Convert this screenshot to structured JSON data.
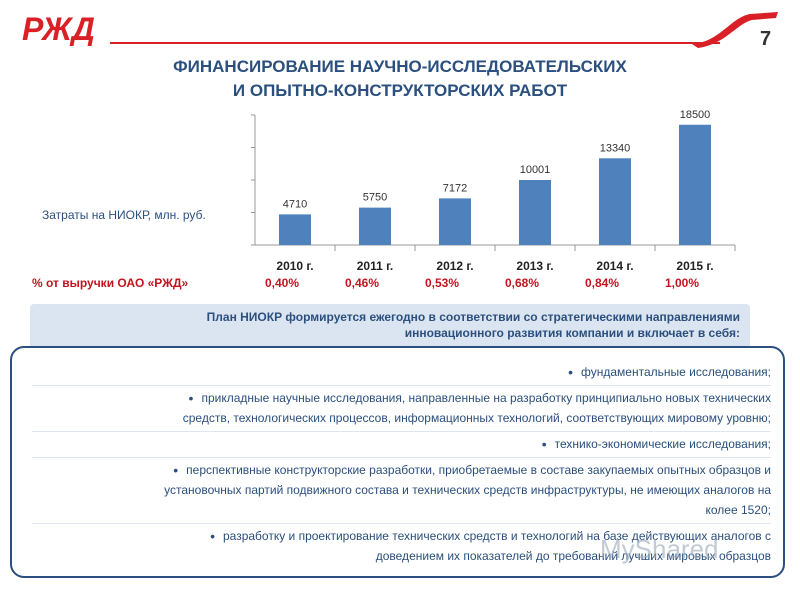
{
  "header": {
    "page_number": "7",
    "title_line1": "ФИНАНСИРОВАНИЕ НАУЧНО-ИССЛЕДОВАТЕЛЬСКИХ",
    "title_line2": "И ОПЫТНО-КОНСТРУКТОРСКИХ РАБОТ",
    "brand_color": "#d92027",
    "title_color": "#2b4f7e"
  },
  "chart_data": {
    "type": "bar",
    "categories": [
      "2010 г.",
      "2011 г.",
      "2012 г.",
      "2013 г.",
      "2014 г.",
      "2015 г."
    ],
    "values": [
      4710,
      5750,
      7172,
      10001,
      13340,
      18500
    ],
    "data_labels": [
      "4710",
      "5750",
      "7172",
      "10001",
      "13340",
      "18500"
    ],
    "ylabel": "Затраты на НИОКР, млн. руб.",
    "ylim": [
      0,
      20000
    ],
    "grid": false,
    "bar_color": "#4f81bd"
  },
  "revenue_share": {
    "label": "% от выручки ОАО «РЖД»",
    "values": [
      "0,40%",
      "0,46%",
      "0,53%",
      "0,68%",
      "0,84%",
      "1,00%"
    ]
  },
  "banner": {
    "line1": "План НИОКР формируется ежегодно в соответствии со стратегическими направлениями",
    "line2": "инновационного развития компании и включает в себя:"
  },
  "bullets": [
    {
      "lines": [
        "фундаментальные исследования;"
      ]
    },
    {
      "lines": [
        "прикладные научные исследования, направленные на разработку принципиально новых технических",
        "средств, технологических процессов, информационных технологий, соответствующих мировому уровню;"
      ]
    },
    {
      "lines": [
        "технико-экономические исследования;"
      ]
    },
    {
      "lines": [
        "перспективные конструкторские разработки, приобретаемые в составе закупаемых опытных образцов и",
        "установочных партий подвижного состава и технических средств инфраструктуры, не имеющих аналогов на",
        "колее 1520;"
      ]
    },
    {
      "lines": [
        "разработку и проектирование технических средств и технологий на базе действующих аналогов с",
        "доведением их показателей до требований лучших мировых образцов"
      ]
    }
  ],
  "watermark": "MyShared"
}
